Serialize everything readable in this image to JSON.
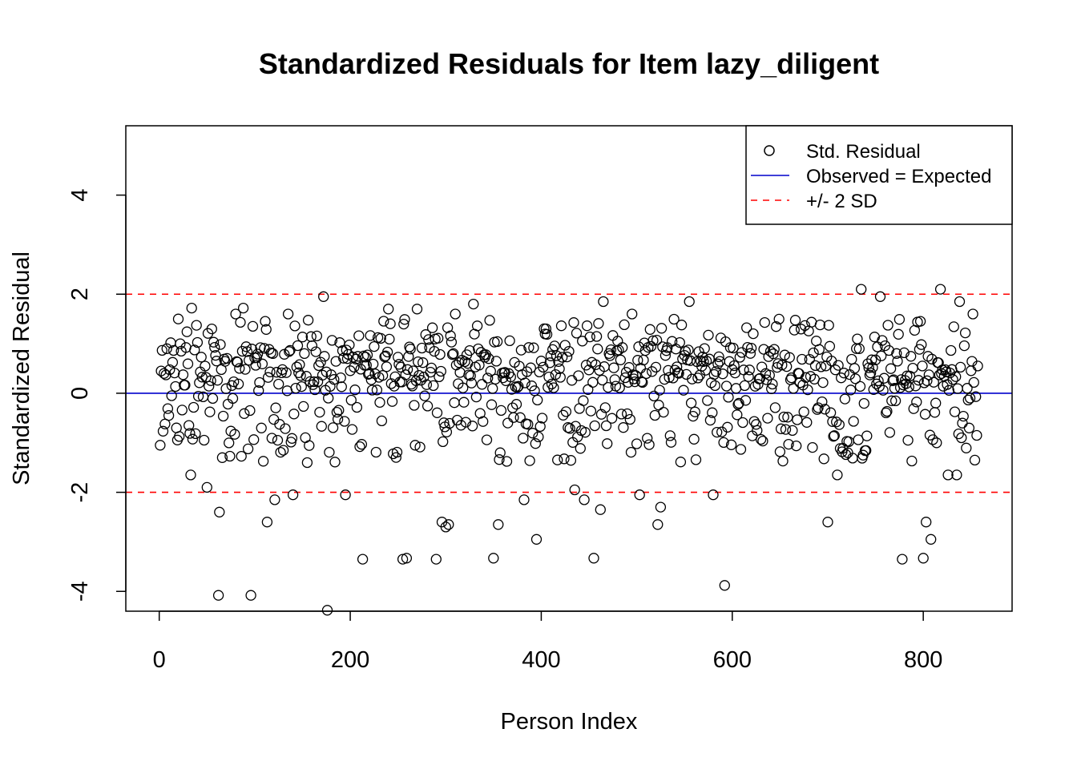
{
  "chart_data": {
    "type": "scatter",
    "title": "Standardized Residuals for Item lazy_diligent",
    "xlabel": "Person Index",
    "ylabel": "Standardized Residual",
    "xlim": [
      -35,
      893
    ],
    "ylim": [
      -4.4,
      5.4
    ],
    "xticks": [
      0,
      200,
      400,
      600,
      800
    ],
    "yticks": [
      -4,
      -2,
      0,
      2,
      4
    ],
    "grid": false,
    "legend_position": "top-right",
    "colors": {
      "points": "#000000",
      "expected_line": "#0000cc",
      "sd_lines": "#ff0000"
    },
    "reference_lines": [
      {
        "name": "Observed = Expected",
        "y": 0,
        "style": "solid",
        "color": "#0000cc"
      },
      {
        "name": "+/- 2 SD",
        "y": 2,
        "style": "dashed",
        "color": "#ff0000"
      },
      {
        "name": "+/- 2 SD",
        "y": -2,
        "style": "dashed",
        "color": "#ff0000"
      }
    ],
    "legend": [
      {
        "label": "Std. Residual",
        "kind": "point"
      },
      {
        "label": "Observed = Expected",
        "kind": "solid-line",
        "color": "#0000cc"
      },
      {
        "label": "+/- 2 SD",
        "kind": "dashed-line",
        "color": "#ff0000"
      }
    ],
    "series": [
      {
        "name": "Std. Residual",
        "n_points": 857,
        "highlight_points": [
          [
            1,
            -1.05
          ],
          [
            2,
            0.45
          ],
          [
            5,
            0.4
          ],
          [
            8,
            0.9
          ],
          [
            10,
            -0.45
          ],
          [
            13,
            -0.05
          ],
          [
            18,
            -0.7
          ],
          [
            20,
            1.5
          ],
          [
            22,
            1.0
          ],
          [
            33,
            -1.65
          ],
          [
            34,
            1.72
          ],
          [
            50,
            -1.9
          ],
          [
            62,
            -4.08
          ],
          [
            63,
            -2.4
          ],
          [
            66,
            -1.3
          ],
          [
            80,
            1.6
          ],
          [
            88,
            1.72
          ],
          [
            96,
            -4.08
          ],
          [
            98,
            1.35
          ],
          [
            113,
            -2.6
          ],
          [
            121,
            -2.15
          ],
          [
            135,
            1.6
          ],
          [
            140,
            -2.05
          ],
          [
            155,
            -1.4
          ],
          [
            172,
            1.95
          ],
          [
            176,
            -4.38
          ],
          [
            195,
            -2.05
          ],
          [
            213,
            -3.35
          ],
          [
            240,
            1.7
          ],
          [
            255,
            -3.35
          ],
          [
            259,
            -3.33
          ],
          [
            270,
            1.7
          ],
          [
            290,
            -3.35
          ],
          [
            296,
            -2.6
          ],
          [
            300,
            -2.7
          ],
          [
            303,
            -2.65
          ],
          [
            310,
            1.6
          ],
          [
            329,
            1.8
          ],
          [
            350,
            -3.33
          ],
          [
            355,
            -2.65
          ],
          [
            382,
            -2.15
          ],
          [
            395,
            -2.95
          ],
          [
            435,
            -1.95
          ],
          [
            445,
            -2.15
          ],
          [
            455,
            -3.33
          ],
          [
            462,
            -2.35
          ],
          [
            465,
            1.85
          ],
          [
            495,
            1.6
          ],
          [
            503,
            -2.05
          ],
          [
            522,
            -2.65
          ],
          [
            525,
            -2.3
          ],
          [
            555,
            1.85
          ],
          [
            580,
            -2.05
          ],
          [
            592,
            -3.88
          ],
          [
            700,
            -2.6
          ],
          [
            710,
            -1.65
          ],
          [
            735,
            2.1
          ],
          [
            755,
            1.95
          ],
          [
            778,
            -3.35
          ],
          [
            800,
            -3.33
          ],
          [
            803,
            -2.6
          ],
          [
            808,
            -2.95
          ],
          [
            818,
            2.1
          ],
          [
            826,
            -1.65
          ],
          [
            835,
            -1.65
          ],
          [
            838,
            1.85
          ],
          [
            852,
            1.6
          ],
          [
            854,
            -1.35
          ],
          [
            856,
            -0.85
          ],
          [
            857,
            0.55
          ]
        ]
      }
    ]
  }
}
